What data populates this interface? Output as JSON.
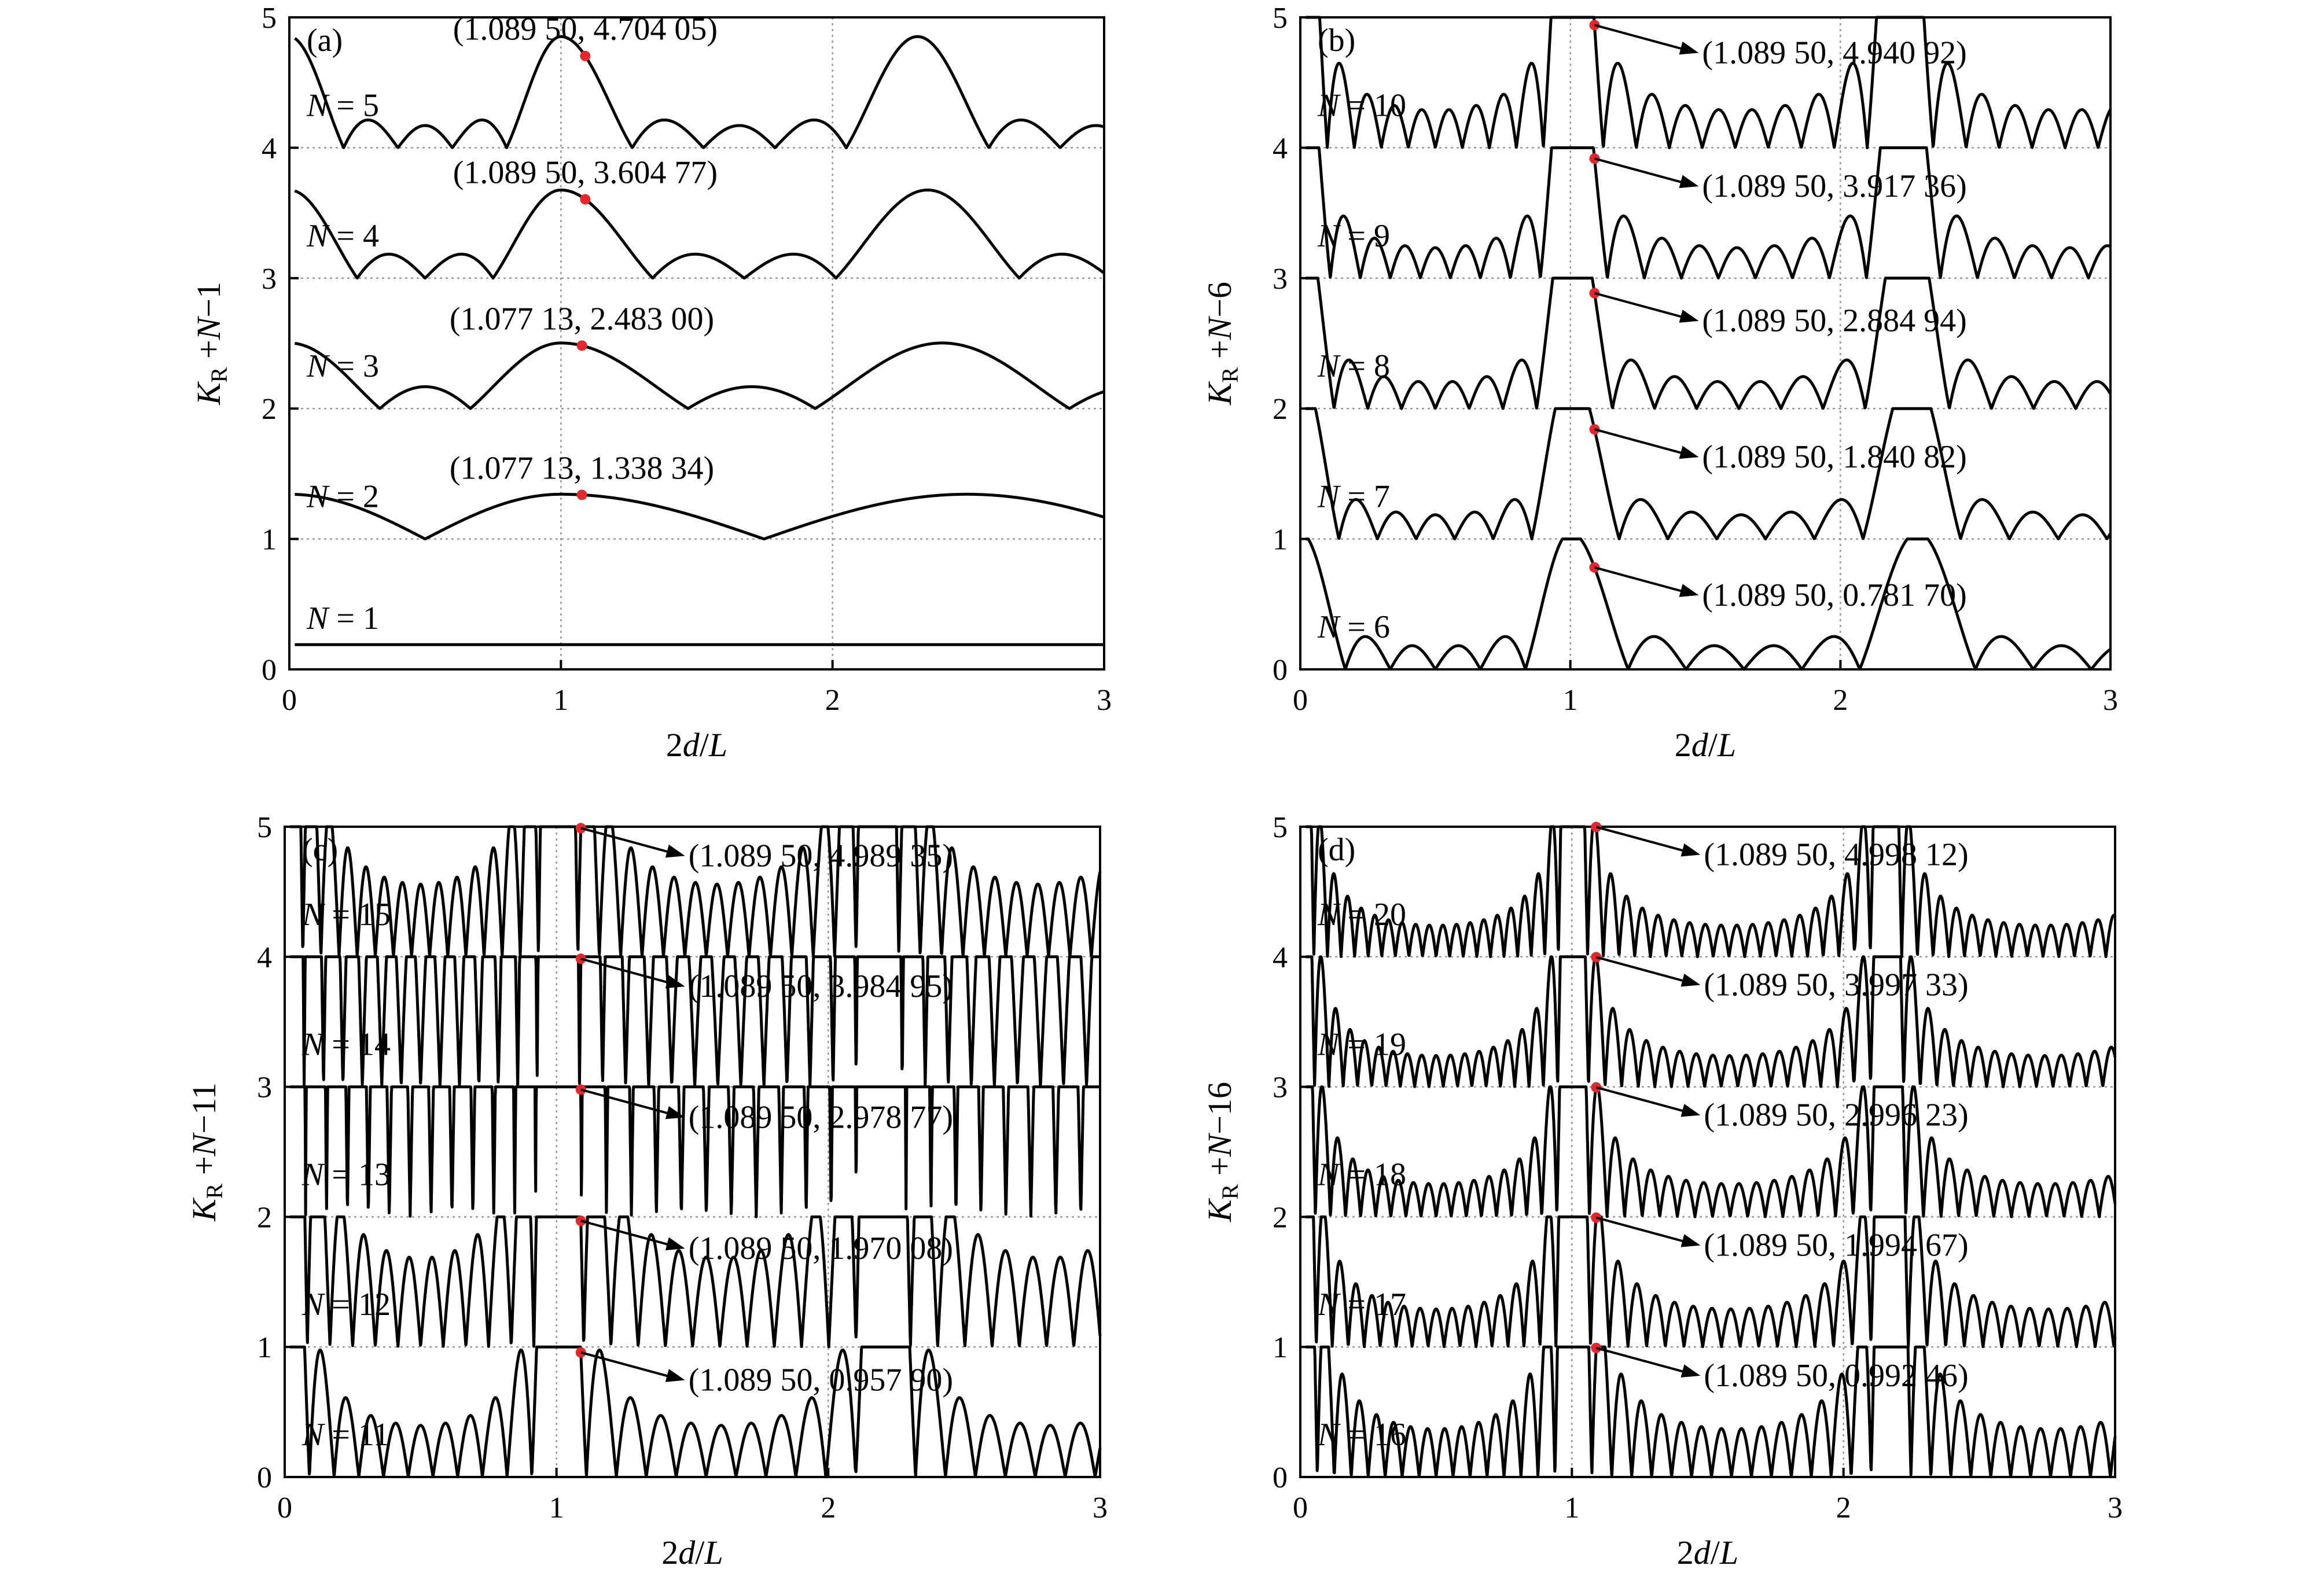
{
  "chart_data": [
    {
      "type": "line",
      "panel_label": "(a)",
      "xlabel": "2d/L",
      "ylabel": "K_R+N−1",
      "xlim": [
        0,
        3
      ],
      "ylim": [
        0,
        5
      ],
      "xticks": [
        "0",
        "1",
        "2",
        "3"
      ],
      "yticks": [
        "0",
        "1",
        "2",
        "3",
        "4",
        "5"
      ],
      "grid": "dotted at x=1, x=2 and integer y",
      "annotation_style": "text-above",
      "series": [
        {
          "label": "N = 1",
          "N": 1,
          "offset": 0,
          "peak": {
            "x": 0.9,
            "y": 0.19
          }
        },
        {
          "label": "N = 2",
          "N": 2,
          "offset": 1,
          "peak": {
            "x": 1.07713,
            "y": 1.33834
          },
          "annotation": "(1.077 13, 1.338 34)"
        },
        {
          "label": "N = 3",
          "N": 3,
          "offset": 2,
          "peak": {
            "x": 1.07713,
            "y": 2.483
          },
          "annotation": "(1.077 13, 2.483 00)"
        },
        {
          "label": "N = 4",
          "N": 4,
          "offset": 3,
          "peak": {
            "x": 1.0895,
            "y": 3.60477
          },
          "annotation": "(1.089 50, 3.604 77)"
        },
        {
          "label": "N = 5",
          "N": 5,
          "offset": 4,
          "peak": {
            "x": 1.0895,
            "y": 4.70405
          },
          "annotation": "(1.089 50, 4.704 05)"
        }
      ]
    },
    {
      "type": "line",
      "panel_label": "(b)",
      "xlabel": "2d/L",
      "ylabel": "K_R+N−6",
      "xlim": [
        0,
        3
      ],
      "ylim": [
        0,
        5
      ],
      "xticks": [
        "0",
        "1",
        "2",
        "3"
      ],
      "yticks": [
        "0",
        "1",
        "2",
        "3",
        "4",
        "5"
      ],
      "grid": "dotted at x=1, x=2 and integer y",
      "annotation_style": "arrow",
      "series": [
        {
          "label": "N = 6",
          "N": 6,
          "offset": 0,
          "peak": {
            "x": 1.0895,
            "y": 0.7817
          },
          "annotation": "(1.089 50, 0.781 70)"
        },
        {
          "label": "N = 7",
          "N": 7,
          "offset": 1,
          "peak": {
            "x": 1.0895,
            "y": 1.84082
          },
          "annotation": "(1.089 50, 1.840 82)"
        },
        {
          "label": "N = 8",
          "N": 8,
          "offset": 2,
          "peak": {
            "x": 1.0895,
            "y": 2.88494
          },
          "annotation": "(1.089 50, 2.884 94)"
        },
        {
          "label": "N = 9",
          "N": 9,
          "offset": 3,
          "peak": {
            "x": 1.0895,
            "y": 3.91736
          },
          "annotation": "(1.089 50, 3.917 36)"
        },
        {
          "label": "N = 10",
          "N": 10,
          "offset": 4,
          "peak": {
            "x": 1.0895,
            "y": 4.94092
          },
          "annotation": "(1.089 50, 4.940 92)"
        }
      ]
    },
    {
      "type": "line",
      "panel_label": "(c)",
      "xlabel": "2d/L",
      "ylabel": "K_R+N−11",
      "xlim": [
        0,
        3
      ],
      "ylim": [
        0,
        5
      ],
      "xticks": [
        "0",
        "1",
        "2",
        "3"
      ],
      "yticks": [
        "0",
        "1",
        "2",
        "3",
        "4",
        "5"
      ],
      "grid": "dotted at x=1, x=2 and integer y",
      "annotation_style": "arrow",
      "series": [
        {
          "label": "N = 11",
          "N": 11,
          "offset": 0,
          "peak": {
            "x": 1.0895,
            "y": 0.9579
          },
          "annotation": "(1.089 50, 0.957 90)"
        },
        {
          "label": "N = 12",
          "N": 12,
          "offset": 1,
          "peak": {
            "x": 1.0895,
            "y": 1.97008
          },
          "annotation": "(1.089 50, 1.970 08)"
        },
        {
          "label": "N = 13",
          "N": 13,
          "offset": 2,
          "peak": {
            "x": 1.0895,
            "y": 2.97877
          },
          "annotation": "(1.089 50, 2.978 77)"
        },
        {
          "label": "N = 14",
          "N": 14,
          "offset": 3,
          "peak": {
            "x": 1.0895,
            "y": 3.98495
          },
          "annotation": "(1.089 50, 3.984 95)"
        },
        {
          "label": "N = 15",
          "N": 15,
          "offset": 4,
          "peak": {
            "x": 1.0895,
            "y": 4.98935
          },
          "annotation": "(1.089 50, 4.989 35)"
        }
      ]
    },
    {
      "type": "line",
      "panel_label": "(d)",
      "xlabel": "2d/L",
      "ylabel": "K_R+N−16",
      "xlim": [
        0,
        3
      ],
      "ylim": [
        0,
        5
      ],
      "xticks": [
        "0",
        "1",
        "2",
        "3"
      ],
      "yticks": [
        "0",
        "1",
        "2",
        "3",
        "4",
        "5"
      ],
      "grid": "dotted at x=1, x=2 and integer y",
      "annotation_style": "arrow",
      "series": [
        {
          "label": "N = 16",
          "N": 16,
          "offset": 0,
          "peak": {
            "x": 1.0895,
            "y": 0.99246
          },
          "annotation": "(1.089 50, 0.992 46)"
        },
        {
          "label": "N = 17",
          "N": 17,
          "offset": 1,
          "peak": {
            "x": 1.0895,
            "y": 1.99467
          },
          "annotation": "(1.089 50, 1.994 67)"
        },
        {
          "label": "N = 18",
          "N": 18,
          "offset": 2,
          "peak": {
            "x": 1.0895,
            "y": 2.99623
          },
          "annotation": "(1.089 50, 2.996 23)"
        },
        {
          "label": "N = 19",
          "N": 19,
          "offset": 3,
          "peak": {
            "x": 1.0895,
            "y": 3.99733
          },
          "annotation": "(1.089 50, 3.997 33)"
        },
        {
          "label": "N = 20",
          "N": 20,
          "offset": 4,
          "peak": {
            "x": 1.0895,
            "y": 4.99812
          },
          "annotation": "(1.089 50, 4.998 12)"
        }
      ]
    }
  ],
  "colors": {
    "curve": "#000000",
    "peak_marker": "#e8262a",
    "grid": "#9a9a9a",
    "background": "#ffffff"
  }
}
